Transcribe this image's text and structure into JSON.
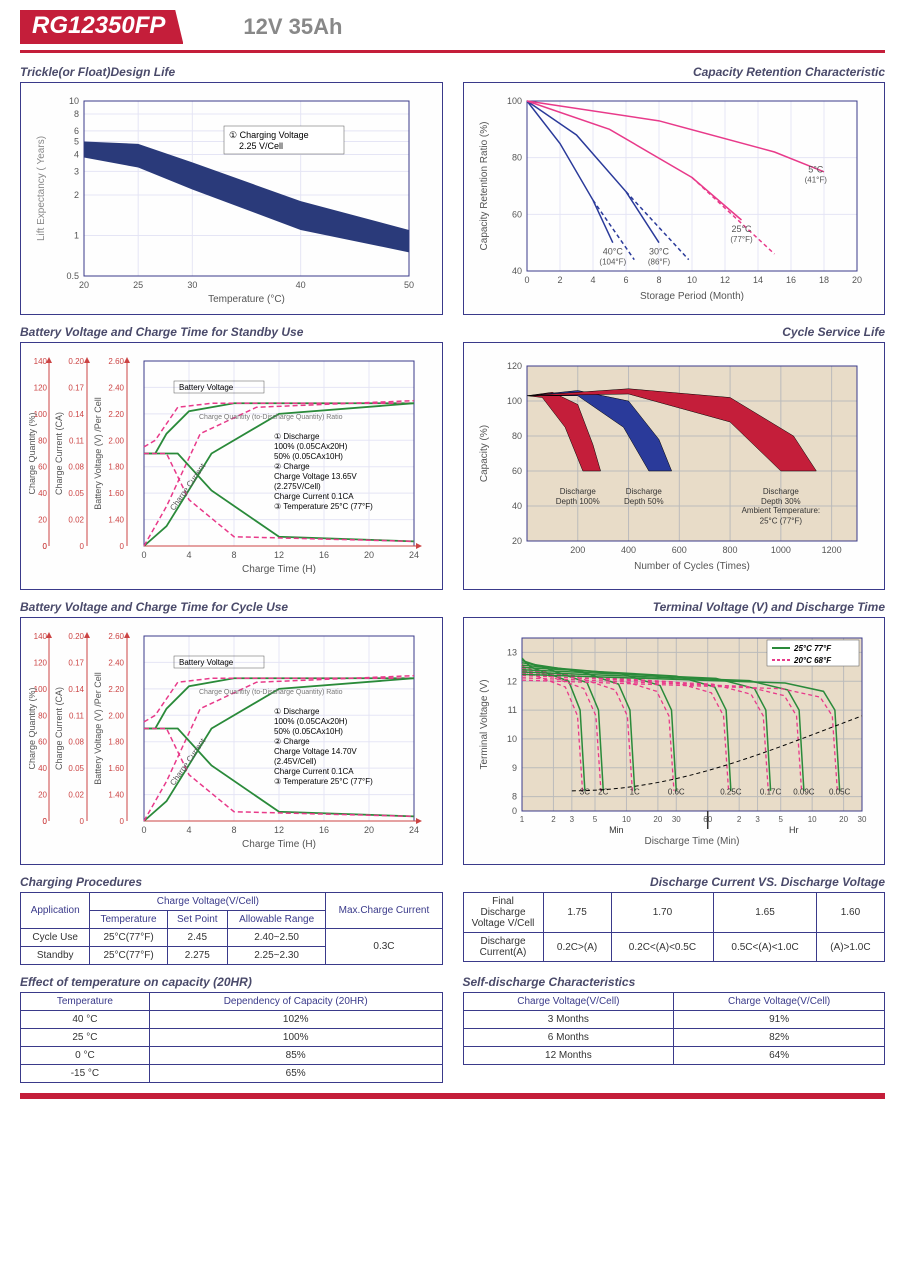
{
  "header": {
    "model": "RG12350FP",
    "spec": "12V  35Ah"
  },
  "chart1": {
    "title": "Trickle(or Float)Design Life",
    "ylabel": "Lift  Expectancy ( Years)",
    "xlabel": "Temperature (°C)",
    "xticks": [
      "20",
      "25",
      "30",
      "40",
      "50"
    ],
    "yticks": [
      "0.5",
      "1",
      "2",
      "3",
      "4",
      "5",
      "6",
      "8",
      "10"
    ],
    "note_line1": "① Charging Voltage",
    "note_line2": "2.25 V/Cell",
    "band_color": "#2a3a7a",
    "grid_color": "#e5e5f5",
    "border_color": "#3a3a8a"
  },
  "chart2": {
    "title": "Capacity  Retention  Characteristic",
    "ylabel": "Capacity Retention Ratio (%)",
    "xlabel": "Storage Period (Month)",
    "xticks": [
      "0",
      "2",
      "4",
      "6",
      "8",
      "10",
      "12",
      "14",
      "16",
      "18",
      "20"
    ],
    "yticks": [
      "40",
      "60",
      "80",
      "100"
    ],
    "curves": [
      {
        "label": "40°C",
        "sub": "(104°F)",
        "color": "#2a3a9a",
        "dash": false
      },
      {
        "label": "30°C",
        "sub": "(86°F)",
        "color": "#2a3a9a",
        "dash": false
      },
      {
        "label": "25°C",
        "sub": "(77°F)",
        "color": "#e83a8a",
        "dash": false
      },
      {
        "label": "5°C",
        "sub": "(41°F)",
        "color": "#e83a8a",
        "dash": false
      }
    ],
    "grid_color": "#e5e5f5"
  },
  "chart3": {
    "title": "Battery Voltage and Charge Time for Standby Use",
    "y1label": "Charge Quantity (%)",
    "y1ticks": [
      "0",
      "20",
      "40",
      "60",
      "80",
      "100",
      "120",
      "140"
    ],
    "y2label": "Charge Current (CA)",
    "y2ticks": [
      "0",
      "",
      "0.02",
      "0.05",
      "0.08",
      "0.11",
      "0.14",
      "0.17",
      "0.20"
    ],
    "y3label": "Battery Voltage (V) /Per Cell",
    "y3ticks": [
      "0",
      "",
      "1.40",
      "1.60",
      "1.80",
      "2.00",
      "2.20",
      "2.40",
      "2.60"
    ],
    "xlabel": "Charge Time (H)",
    "xticks": [
      "0",
      "4",
      "8",
      "12",
      "16",
      "20",
      "24"
    ],
    "notes": [
      "Battery Voltage",
      "Charge Quantity (to-Discharge Quantity) Ratio",
      "① Discharge",
      "100% (0.05CAx20H)",
      "50% (0.05CAx10H)",
      "② Charge",
      "Charge Voltage 13.65V",
      "(2.275V/Cell)",
      "Charge Current 0.1CA",
      "③ Temperature 25°C (77°F)",
      "Charge Current"
    ],
    "solid_color": "#2a8a3a",
    "dash_color": "#e83a8a",
    "grid_color": "#e5e5f5"
  },
  "chart4": {
    "title": "Cycle Service Life",
    "ylabel": "Capacity (%)",
    "yticks": [
      "20",
      "40",
      "60",
      "80",
      "100",
      "120"
    ],
    "xlabel": "Number of Cycles (Times)",
    "xticks": [
      "200",
      "400",
      "600",
      "800",
      "1000",
      "1200"
    ],
    "bands": [
      {
        "label": "Discharge",
        "sub": "Depth 100%",
        "color": "#c41e3a"
      },
      {
        "label": "Discharge",
        "sub": "Depth 50%",
        "color": "#2a3a9a"
      },
      {
        "label": "Discharge",
        "sub": "Depth 30%",
        "color": "#c41e3a"
      }
    ],
    "ambient": "Ambient Temperature:",
    "ambient2": "25°C (77°F)",
    "bg": "#e8dcc8",
    "grid_color": "#bbb"
  },
  "chart5": {
    "title": "Battery Voltage and Charge Time for Cycle Use",
    "y1label": "Charge Quantity (%)",
    "y1ticks": [
      "0",
      "20",
      "40",
      "60",
      "80",
      "100",
      "120",
      "140"
    ],
    "y2label": "Charge Current (CA)",
    "y2ticks": [
      "0",
      "",
      "0.02",
      "0.05",
      "0.08",
      "0.11",
      "0.14",
      "0.17",
      "0.20"
    ],
    "y3label": "Battery Voltage (V) /Per Cell",
    "y3ticks": [
      "0",
      "",
      "1.40",
      "1.60",
      "1.80",
      "2.00",
      "2.20",
      "2.40",
      "2.60"
    ],
    "xlabel": "Charge Time (H)",
    "xticks": [
      "0",
      "4",
      "8",
      "12",
      "16",
      "20",
      "24"
    ],
    "notes": [
      "Battery Voltage",
      "Charge Quantity (to-Discharge Quantity) Ratio",
      "① Discharge",
      "100% (0.05CAx20H)",
      "50% (0.05CAx10H)",
      "② Charge",
      "Charge Voltage 14.70V",
      "(2.45V/Cell)",
      "Charge Current 0.1CA",
      "③ Temperature 25°C (77°F)",
      "Charge Current"
    ],
    "solid_color": "#2a8a3a",
    "dash_color": "#e83a8a",
    "grid_color": "#e5e5f5"
  },
  "chart6": {
    "title": "Terminal Voltage (V) and Discharge Time",
    "ylabel": "Terminal Voltage (V)",
    "yticks": [
      "0",
      "8",
      "9",
      "10",
      "11",
      "12",
      "13"
    ],
    "xticks_min": [
      "1",
      "2",
      "3",
      "5",
      "10",
      "20",
      "30",
      "60"
    ],
    "xticks_hr": [
      "2",
      "3",
      "5",
      "10",
      "20",
      "30"
    ],
    "xlabel": "Discharge Time (Min)",
    "min_lbl": "Min",
    "hr_lbl": "Hr",
    "curves": [
      "3C",
      "2C",
      "1C",
      "0.6C",
      "0.25C",
      "0.17C",
      "0.09C",
      "0.05C"
    ],
    "legend": [
      {
        "t": "25°C 77°F",
        "c": "#2a8a3a"
      },
      {
        "t": "20°C 68°F",
        "c": "#e83a8a"
      }
    ],
    "bg": "#e8dcc8",
    "solid_color": "#2a8a3a",
    "dash_color": "#e83a8a",
    "black_dash": "#000"
  },
  "table1": {
    "title": "Charging Procedures",
    "h1": "Application",
    "h2": "Charge Voltage(V/Cell)",
    "h3": "Max.Charge Current",
    "sub": [
      "Temperature",
      "Set Point",
      "Allowable Range"
    ],
    "rows": [
      [
        "Cycle Use",
        "25°C(77°F)",
        "2.45",
        "2.40~2.50"
      ],
      [
        "Standby",
        "25°C(77°F)",
        "2.275",
        "2.25~2.30"
      ]
    ],
    "max": "0.3C"
  },
  "table2": {
    "title": "Discharge Current VS. Discharge Voltage",
    "r1": [
      "Final Discharge Voltage V/Cell",
      "1.75",
      "1.70",
      "1.65",
      "1.60"
    ],
    "r2": [
      "Discharge Current(A)",
      "0.2C>(A)",
      "0.2C<(A)<0.5C",
      "0.5C<(A)<1.0C",
      "(A)>1.0C"
    ]
  },
  "table3": {
    "title": "Effect of temperature on capacity (20HR)",
    "headers": [
      "Temperature",
      "Dependency of Capacity (20HR)"
    ],
    "rows": [
      [
        "40 °C",
        "102%"
      ],
      [
        "25 °C",
        "100%"
      ],
      [
        "0 °C",
        "85%"
      ],
      [
        "-15 °C",
        "65%"
      ]
    ]
  },
  "table4": {
    "title": "Self-discharge Characteristics",
    "headers": [
      "Charge Voltage(V/Cell)",
      "Charge Voltage(V/Cell)"
    ],
    "rows": [
      [
        "3 Months",
        "91%"
      ],
      [
        "6 Months",
        "82%"
      ],
      [
        "12 Months",
        "64%"
      ]
    ]
  }
}
